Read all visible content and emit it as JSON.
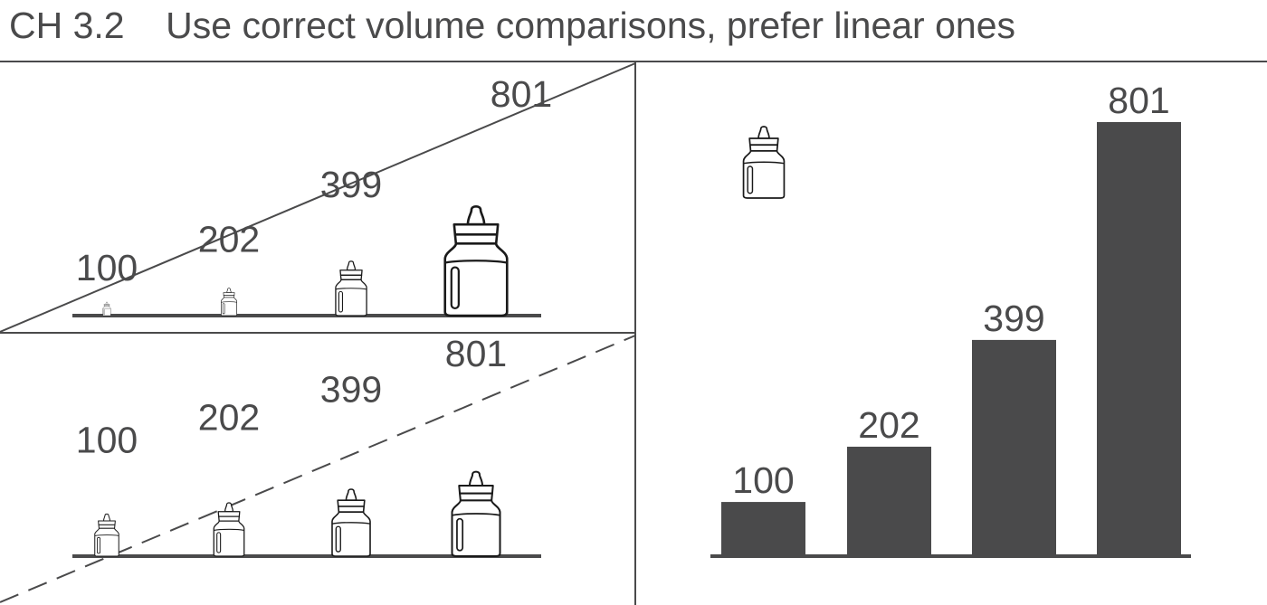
{
  "title": "CH 3.2    Use correct volume comparisons, prefer linear ones",
  "colors": {
    "ink": "#1a1a1a",
    "bar": "#4a4a4b",
    "text": "#4a4a4b",
    "panel_line": "#4a4a4b"
  },
  "chart_data": [
    {
      "type": "pictogram",
      "icon": "baby-bottle-icon",
      "scaling": "volume",
      "categories": [
        "100",
        "202",
        "399",
        "801"
      ],
      "values": [
        100,
        202,
        399,
        801
      ],
      "labels": [
        "100",
        "202",
        "399",
        "801"
      ]
    },
    {
      "type": "pictogram",
      "icon": "baby-bottle-icon",
      "scaling": "linear",
      "categories": [
        "100",
        "202",
        "399",
        "801"
      ],
      "values": [
        100,
        202,
        399,
        801
      ],
      "labels": [
        "100",
        "202",
        "399",
        "801"
      ]
    },
    {
      "type": "bar",
      "legend_icon": "baby-bottle-icon",
      "categories": [
        "100",
        "202",
        "399",
        "801"
      ],
      "values": [
        100,
        202,
        399,
        801
      ],
      "labels": [
        "100",
        "202",
        "399",
        "801"
      ],
      "ylim": [
        0,
        801
      ]
    }
  ]
}
